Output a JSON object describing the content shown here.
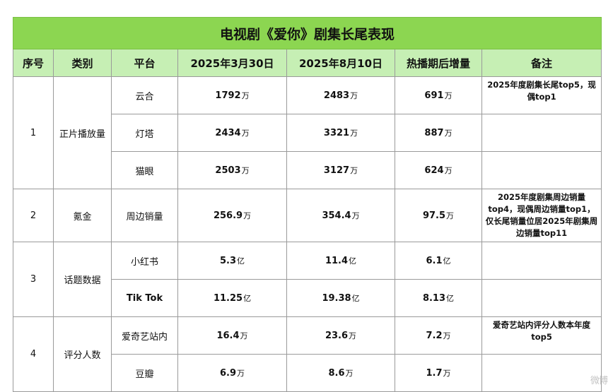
{
  "title": "电视剧《爱你》剧集长尾表现",
  "headers": [
    "序号",
    "类别",
    "平台",
    "2025年3月30日",
    "2025年8月10日",
    "热播期后增量",
    "备注"
  ],
  "groups": [
    {
      "no": "1",
      "category": "正片播放量",
      "rows": [
        {
          "platform": "云合",
          "v1": "1792",
          "u1": "万",
          "v2": "2483",
          "u2": "万",
          "inc": "691",
          "u3": "万",
          "note": "2025年度剧集长尾top5，现偶top1"
        },
        {
          "platform": "灯塔",
          "v1": "2434",
          "u1": "万",
          "v2": "3321",
          "u2": "万",
          "inc": "887",
          "u3": "万",
          "note": ""
        },
        {
          "platform": "猫眼",
          "v1": "2503",
          "u1": "万",
          "v2": "3127",
          "u2": "万",
          "inc": "624",
          "u3": "万",
          "note": ""
        }
      ]
    },
    {
      "no": "2",
      "category": "氪金",
      "rows": [
        {
          "platform": "周边销量",
          "v1": "256.9",
          "u1": "万",
          "v2": "354.4",
          "u2": "万",
          "inc": "97.5",
          "u3": "万",
          "note": "2025年度剧集周边销量top4，现偶周边销量top1，仅长尾销量位居2025年剧集周边销量top11"
        }
      ]
    },
    {
      "no": "3",
      "category": "话题数据",
      "rows": [
        {
          "platform": "小红书",
          "v1": "5.3",
          "u1": "亿",
          "v2": "11.4",
          "u2": "亿",
          "inc": "6.1",
          "u3": "亿",
          "note": ""
        },
        {
          "platform": "Tik Tok",
          "v1": "11.25",
          "u1": "亿",
          "v2": "19.38",
          "u2": "亿",
          "inc": "8.13",
          "u3": "亿",
          "note": ""
        }
      ]
    },
    {
      "no": "4",
      "category": "评分人数",
      "rows": [
        {
          "platform": "爱奇艺站内",
          "v1": "16.4",
          "u1": "万",
          "v2": "23.6",
          "u2": "万",
          "inc": "7.2",
          "u3": "万",
          "note": "爱奇艺站内评分人数本年度top5"
        },
        {
          "platform": "豆瓣",
          "v1": "6.9",
          "u1": "万",
          "v2": "8.6",
          "u2": "万",
          "inc": "1.7",
          "u3": "万",
          "note": ""
        }
      ]
    }
  ],
  "watermark": "微博"
}
